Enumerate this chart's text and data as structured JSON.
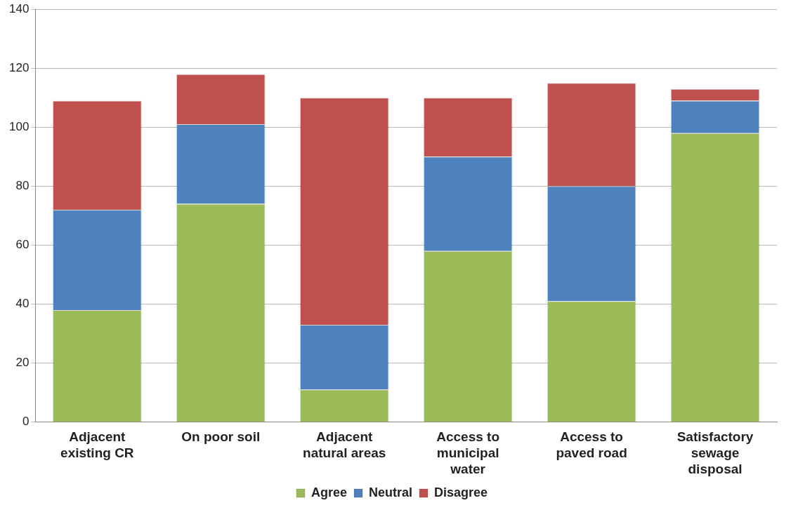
{
  "chart_data": {
    "type": "bar",
    "stacked": true,
    "categories": [
      "Adjacent existing CR",
      "On poor soil",
      "Adjacent natural areas",
      "Access to municipal water",
      "Access to paved road",
      "Satisfactory sewage disposal"
    ],
    "series": [
      {
        "name": "Agree",
        "color": "#9bbb59",
        "values": [
          38,
          74,
          11,
          58,
          41,
          98
        ]
      },
      {
        "name": "Neutral",
        "color": "#4f81bd",
        "values": [
          34,
          27,
          22,
          32,
          39,
          11
        ]
      },
      {
        "name": "Disagree",
        "color": "#c0504d",
        "values": [
          37,
          17,
          77,
          20,
          35,
          4
        ]
      }
    ],
    "ylim": [
      0,
      140
    ],
    "yticks": [
      0,
      20,
      40,
      60,
      80,
      100,
      120,
      140
    ],
    "grid": "y",
    "legend": "bottom"
  }
}
